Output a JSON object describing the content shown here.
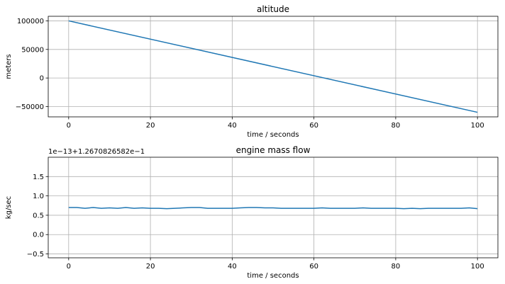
{
  "chart_data": [
    {
      "type": "line",
      "title": "altitude",
      "xlabel": "time / seconds",
      "ylabel": "meters",
      "offset_text": "",
      "xlim": [
        -5,
        105
      ],
      "ylim": [
        -68000,
        108000
      ],
      "xticks": [
        0,
        20,
        40,
        60,
        80,
        100
      ],
      "xtick_labels": [
        "0",
        "20",
        "40",
        "60",
        "80",
        "100"
      ],
      "yticks": [
        100000,
        50000,
        0,
        -50000
      ],
      "ytick_labels": [
        "100000",
        "50000",
        "0",
        "−50000"
      ],
      "grid": true,
      "series": [
        {
          "color": "#1f77b4",
          "x": [
            0,
            100
          ],
          "y": [
            100000,
            -60000
          ]
        }
      ]
    },
    {
      "type": "line",
      "title": "engine mass flow",
      "xlabel": "time / seconds",
      "ylabel": "kg/sec",
      "offset_text": "1e−13+1.2670826582e−1",
      "xlim": [
        -5,
        105
      ],
      "ylim": [
        -0.6,
        2.0
      ],
      "xticks": [
        0,
        20,
        40,
        60,
        80,
        100
      ],
      "xtick_labels": [
        "0",
        "20",
        "40",
        "60",
        "80",
        "100"
      ],
      "yticks": [
        1.5,
        1.0,
        0.5,
        0.0,
        -0.5
      ],
      "ytick_labels": [
        "1.5",
        "1.0",
        "0.5",
        "0.0",
        "−0.5"
      ],
      "grid": true,
      "series": [
        {
          "color": "#1f77b4",
          "x": [
            0,
            2,
            4,
            6,
            8,
            10,
            12,
            14,
            16,
            18,
            20,
            22,
            24,
            26,
            28,
            30,
            32,
            34,
            36,
            38,
            40,
            42,
            44,
            46,
            48,
            50,
            52,
            54,
            56,
            58,
            60,
            62,
            64,
            66,
            68,
            70,
            72,
            74,
            76,
            78,
            80,
            82,
            84,
            86,
            88,
            90,
            92,
            94,
            96,
            98,
            100
          ],
          "y": [
            0.7,
            0.7,
            0.68,
            0.7,
            0.68,
            0.69,
            0.68,
            0.7,
            0.68,
            0.69,
            0.68,
            0.68,
            0.67,
            0.68,
            0.69,
            0.7,
            0.7,
            0.68,
            0.68,
            0.68,
            0.68,
            0.69,
            0.7,
            0.7,
            0.69,
            0.69,
            0.68,
            0.68,
            0.68,
            0.68,
            0.68,
            0.69,
            0.68,
            0.68,
            0.68,
            0.68,
            0.69,
            0.68,
            0.68,
            0.68,
            0.68,
            0.67,
            0.68,
            0.67,
            0.68,
            0.68,
            0.68,
            0.68,
            0.68,
            0.69,
            0.67
          ]
        }
      ]
    }
  ]
}
